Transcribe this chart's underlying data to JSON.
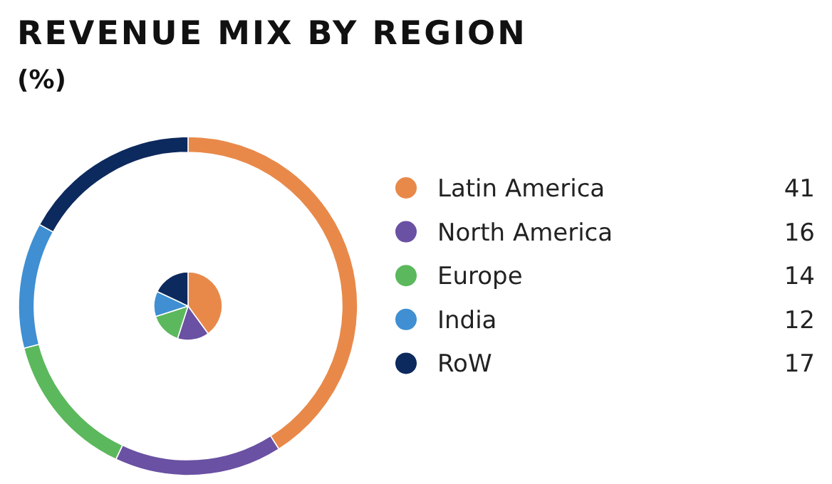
{
  "chart_data": {
    "type": "pie",
    "title": "REVENUE MIX BY REGION",
    "subtitle": "(%)",
    "categories": [
      "Latin America",
      "North America",
      "Europe",
      "India",
      "RoW"
    ],
    "colors": [
      "#e8894a",
      "#6a51a3",
      "#5cb85c",
      "#3f8fd2",
      "#0d2a5e"
    ],
    "legend": "right",
    "series": [
      {
        "values": [
          40,
          15,
          15,
          12,
          18
        ]
      },
      {
        "type": "donut",
        "values": [
          41,
          16,
          14,
          12,
          17
        ],
        "value_labels": [
          "41",
          "16",
          "14",
          "12",
          "17"
        ]
      }
    ]
  }
}
